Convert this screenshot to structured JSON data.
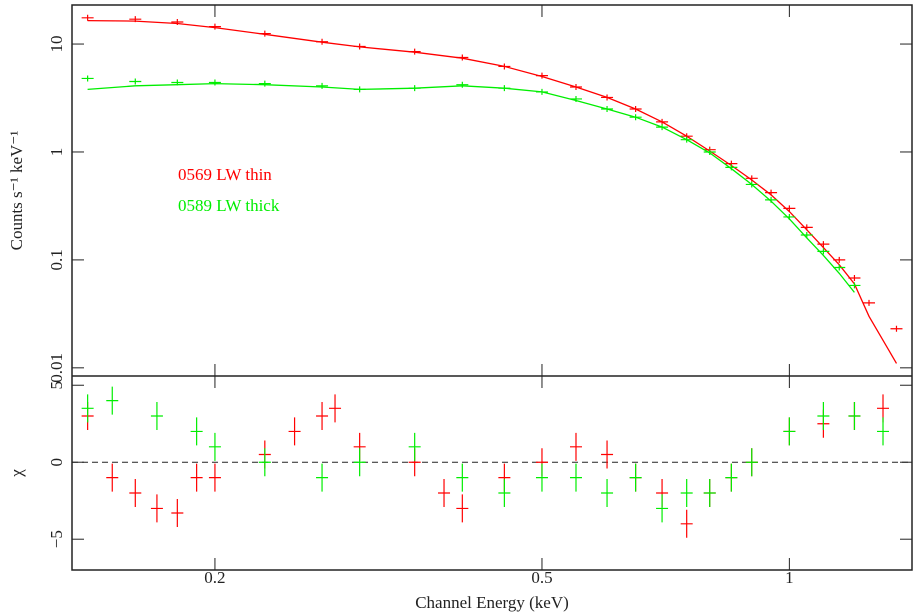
{
  "chart_data": [
    {
      "type": "line",
      "xlog": true,
      "ylog": true,
      "ylabel": "Counts s⁻¹ keV⁻¹",
      "xlim": [
        0.134,
        1.41
      ],
      "ylim": [
        0.0084,
        23
      ],
      "xticks": [
        0.2,
        0.5,
        1
      ],
      "yticks": [
        0.01,
        0.1,
        1,
        10
      ],
      "series": [
        {
          "name": "0569 LW thin",
          "color": "#ff0000",
          "x": [
            0.14,
            0.16,
            0.18,
            0.2,
            0.23,
            0.27,
            0.3,
            0.35,
            0.4,
            0.45,
            0.5,
            0.55,
            0.6,
            0.65,
            0.7,
            0.75,
            0.8,
            0.85,
            0.9,
            0.95,
            1.0,
            1.05,
            1.1,
            1.15,
            1.2,
            1.25,
            1.35
          ],
          "values": [
            17.5,
            17,
            16,
            14.5,
            12.5,
            10.5,
            9.5,
            8.5,
            7.5,
            6.2,
            5.1,
            4,
            3.2,
            2.5,
            1.9,
            1.4,
            1.05,
            0.78,
            0.57,
            0.42,
            0.3,
            0.2,
            0.14,
            0.1,
            0.068,
            0.04,
            0.023
          ],
          "model": [
            16.5,
            16.3,
            15.5,
            14.2,
            12.3,
            10.4,
            9.4,
            8.4,
            7.4,
            6.2,
            5.0,
            4.0,
            3.2,
            2.5,
            1.9,
            1.4,
            1.02,
            0.75,
            0.55,
            0.4,
            0.28,
            0.19,
            0.13,
            0.09,
            0.06,
            0.03,
            0.011
          ]
        },
        {
          "name": "0589 LW thick",
          "color": "#00ee00",
          "x": [
            0.14,
            0.16,
            0.18,
            0.2,
            0.23,
            0.27,
            0.3,
            0.35,
            0.4,
            0.45,
            0.5,
            0.55,
            0.6,
            0.65,
            0.7,
            0.75,
            0.8,
            0.85,
            0.9,
            0.95,
            1.0,
            1.05,
            1.1,
            1.15,
            1.2
          ],
          "values": [
            4.8,
            4.5,
            4.4,
            4.4,
            4.3,
            4.1,
            3.8,
            3.9,
            4.2,
            3.9,
            3.6,
            3.1,
            2.5,
            2.1,
            1.7,
            1.3,
            1.0,
            0.72,
            0.5,
            0.36,
            0.25,
            0.17,
            0.12,
            0.085,
            0.058
          ],
          "model": [
            3.8,
            4.1,
            4.2,
            4.3,
            4.2,
            4.0,
            3.8,
            3.9,
            4.1,
            3.9,
            3.6,
            3.0,
            2.5,
            2.1,
            1.7,
            1.3,
            0.98,
            0.7,
            0.5,
            0.35,
            0.24,
            0.16,
            0.11,
            0.075,
            0.05
          ]
        }
      ]
    },
    {
      "type": "scatter",
      "xlog": true,
      "xlabel": "Channel Energy (keV)",
      "ylabel": "χ",
      "xlim": [
        0.134,
        1.41
      ],
      "ylim": [
        -7,
        5.6
      ],
      "xticks": [
        0.2,
        0.5,
        1
      ],
      "yticks": [
        {
          "value": -5,
          "label": "−5"
        },
        0,
        5
      ],
      "series": [
        {
          "name": "0569 LW thin",
          "color": "#ff0000",
          "x": [
            0.14,
            0.15,
            0.16,
            0.17,
            0.18,
            0.19,
            0.2,
            0.23,
            0.25,
            0.27,
            0.28,
            0.3,
            0.35,
            0.38,
            0.4,
            0.45,
            0.5,
            0.55,
            0.6,
            0.65,
            0.7,
            0.75,
            0.8,
            0.85,
            0.9,
            1.0,
            1.1,
            1.2,
            1.3
          ],
          "values": [
            3,
            -1,
            -2,
            -3,
            -3.3,
            -1,
            -1,
            0.5,
            2,
            3,
            3.5,
            1,
            0,
            -2,
            -3,
            -1,
            0,
            1,
            0.5,
            -1,
            -2,
            -4,
            -2,
            -1,
            0,
            2,
            2.5,
            3,
            3.5
          ]
        },
        {
          "name": "0589 LW thick",
          "color": "#00ee00",
          "x": [
            0.14,
            0.15,
            0.17,
            0.19,
            0.2,
            0.23,
            0.27,
            0.3,
            0.35,
            0.4,
            0.45,
            0.5,
            0.55,
            0.6,
            0.65,
            0.7,
            0.75,
            0.8,
            0.85,
            0.9,
            1.0,
            1.1,
            1.2,
            1.3
          ],
          "values": [
            3.5,
            4,
            3,
            2,
            1,
            0,
            -1,
            0,
            1,
            -1,
            -2,
            -1,
            -1,
            -2,
            -1,
            -3,
            -2,
            -2,
            -1,
            0,
            2,
            3,
            3,
            2
          ]
        }
      ]
    }
  ]
}
